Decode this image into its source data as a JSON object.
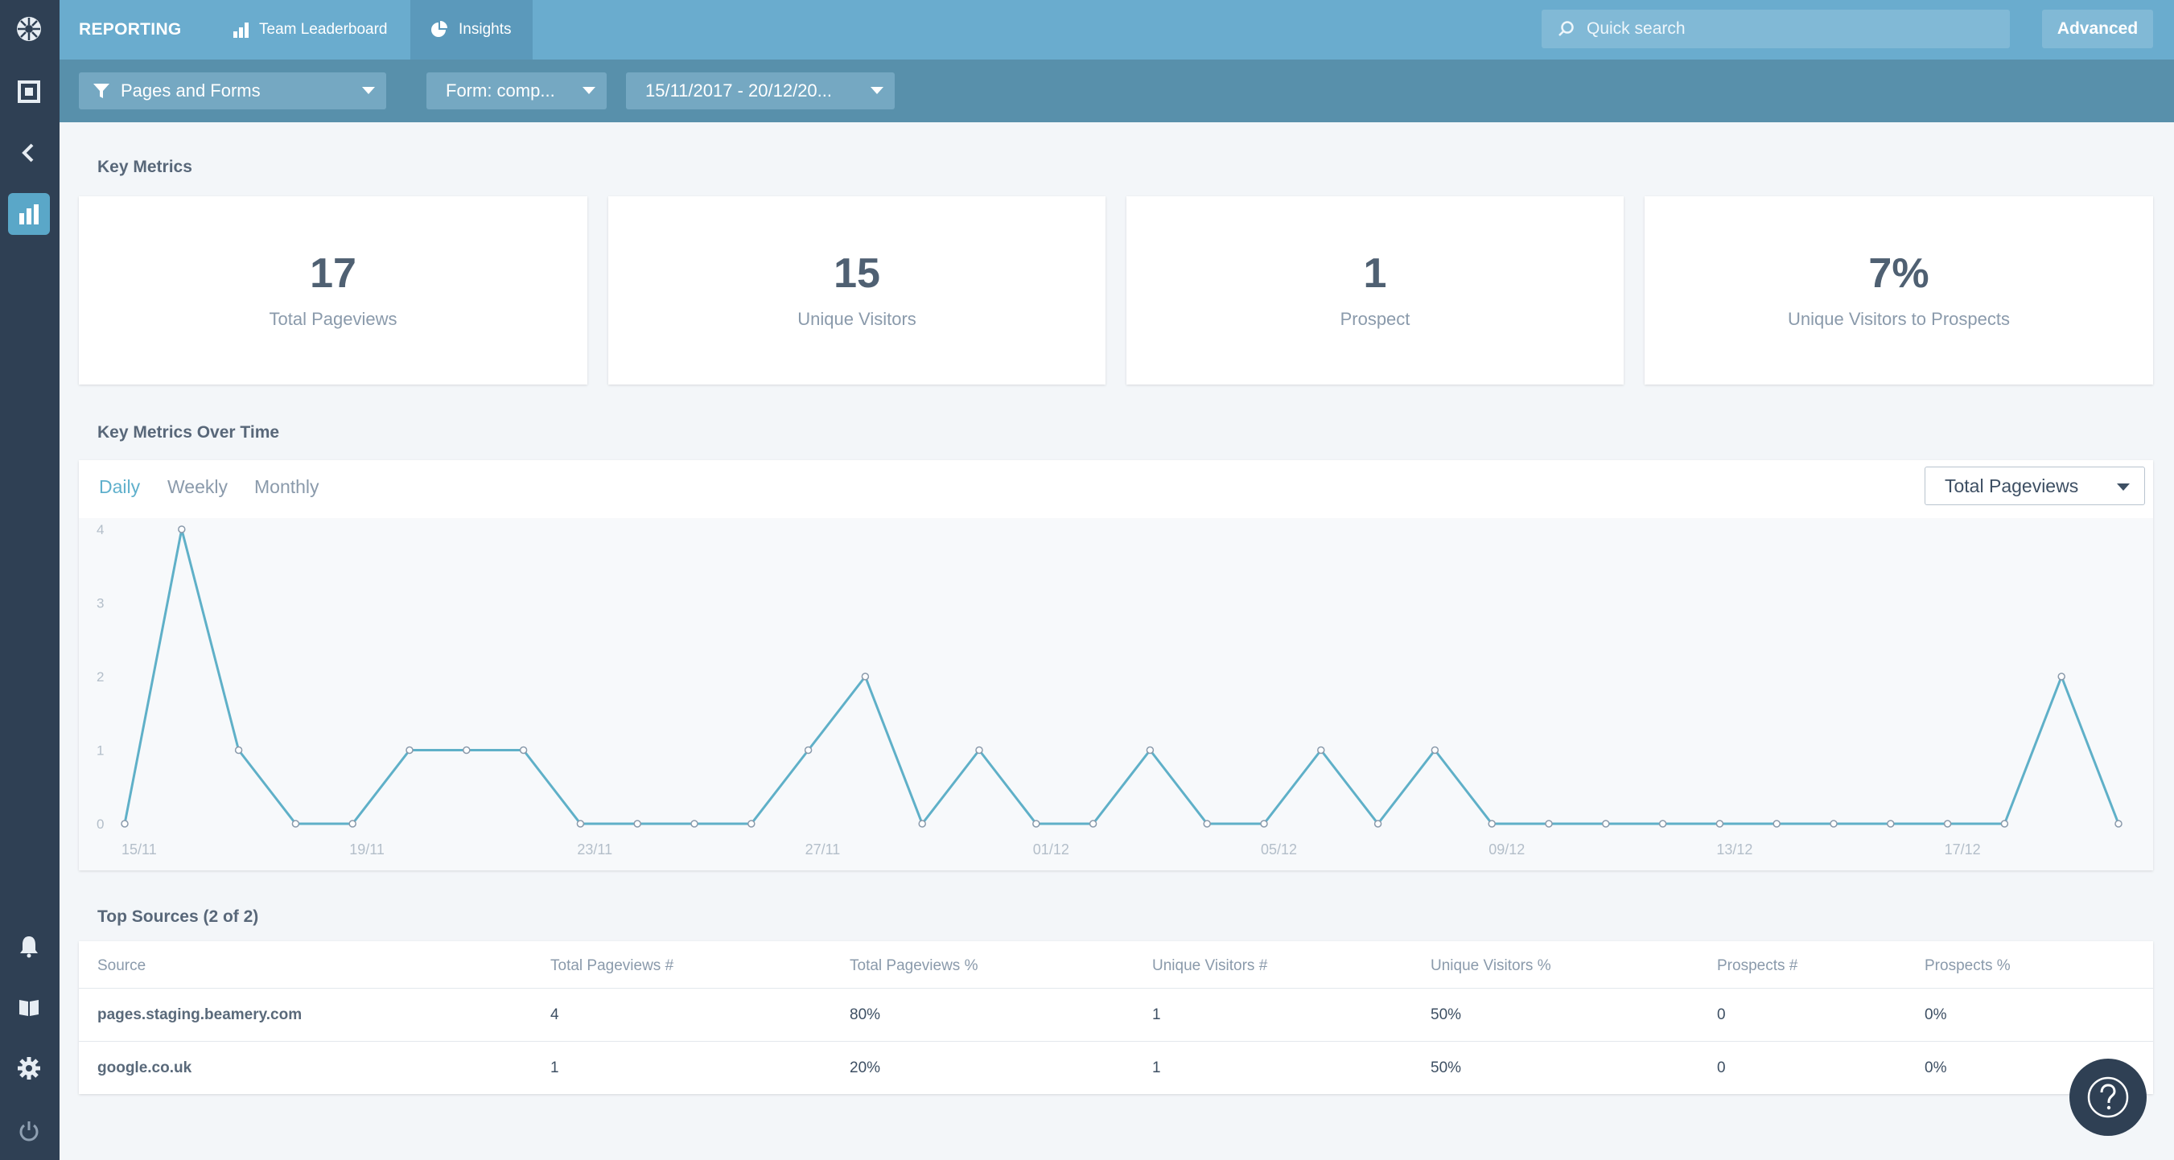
{
  "app": {
    "brand": "REPORTING",
    "tabs": [
      {
        "label": "Team Leaderboard",
        "icon": "bar-chart-icon"
      },
      {
        "label": "Insights",
        "icon": "pie-chart-icon",
        "active": true
      }
    ],
    "search_placeholder": "Quick search",
    "advanced_label": "Advanced"
  },
  "rail": {
    "top_icons": [
      "logo-icon",
      "square-icon",
      "collapse-icon",
      "analytics-icon"
    ],
    "bottom_icons": [
      "bell-icon",
      "book-icon",
      "gear-icon",
      "power-icon"
    ],
    "active": "analytics-icon"
  },
  "filters": {
    "type": "Pages and Forms",
    "form": "Form: comp...",
    "date_range": "15/11/2017 - 20/12/20..."
  },
  "key_metrics": {
    "title": "Key Metrics",
    "cards": [
      {
        "value": "17",
        "label": "Total Pageviews"
      },
      {
        "value": "15",
        "label": "Unique Visitors"
      },
      {
        "value": "1",
        "label": "Prospect"
      },
      {
        "value": "7%",
        "label": "Unique Visitors to Prospects"
      }
    ]
  },
  "over_time": {
    "title": "Key Metrics Over Time",
    "periods": [
      "Daily",
      "Weekly",
      "Monthly"
    ],
    "active_period": "Daily",
    "metric_select": "Total Pageviews"
  },
  "chart_data": {
    "type": "line",
    "title": "",
    "xlabel": "",
    "ylabel": "",
    "ylim": [
      0,
      4
    ],
    "yticks": [
      "0",
      "1",
      "2",
      "3",
      "4"
    ],
    "xtick_labels": [
      "15/11",
      "19/11",
      "23/11",
      "27/11",
      "01/12",
      "05/12",
      "09/12",
      "13/12",
      "17/12"
    ],
    "x": [
      "15/11",
      "16/11",
      "17/11",
      "18/11",
      "19/11",
      "20/11",
      "21/11",
      "22/11",
      "23/11",
      "24/11",
      "25/11",
      "26/11",
      "27/11",
      "28/11",
      "29/11",
      "30/11",
      "01/12",
      "02/12",
      "03/12",
      "04/12",
      "05/12",
      "06/12",
      "07/12",
      "08/12",
      "09/12",
      "10/12",
      "11/12",
      "12/12",
      "13/12",
      "14/12",
      "15/12",
      "16/12",
      "17/12",
      "18/12",
      "19/12",
      "20/12"
    ],
    "series": [
      {
        "values": [
          0,
          4,
          1,
          0,
          0,
          1,
          1,
          1,
          0,
          0,
          0,
          0,
          1,
          2,
          0,
          1,
          0,
          0,
          1,
          0,
          0,
          1,
          0,
          1,
          0,
          0,
          0,
          0,
          0,
          0,
          0,
          0,
          0,
          0,
          2,
          0
        ]
      }
    ],
    "color": "#5fb0c8",
    "grid": false
  },
  "top_sources": {
    "title": "Top Sources (2 of 2)",
    "columns": [
      "Source",
      "Total Pageviews #",
      "Total Pageviews %",
      "Unique Visitors #",
      "Unique Visitors %",
      "Prospects #",
      "Prospects %"
    ],
    "rows": [
      [
        "pages.staging.beamery.com",
        "4",
        "80%",
        "1",
        "50%",
        "0",
        "0%"
      ],
      [
        "google.co.uk",
        "1",
        "20%",
        "1",
        "50%",
        "0",
        "0%"
      ]
    ]
  }
}
